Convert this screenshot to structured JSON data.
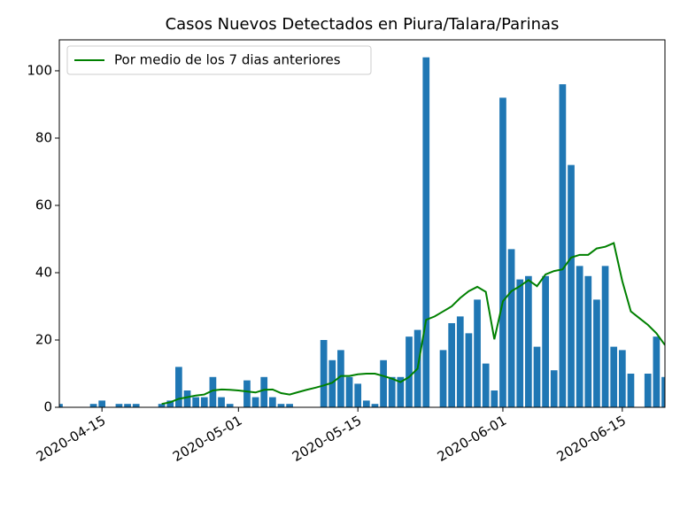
{
  "chart_data": {
    "type": "bar",
    "title": "Casos Nuevos Detectados en Piura/Talara/Parinas",
    "x": [
      "2020-04-10",
      "2020-04-11",
      "2020-04-12",
      "2020-04-13",
      "2020-04-14",
      "2020-04-15",
      "2020-04-16",
      "2020-04-17",
      "2020-04-18",
      "2020-04-19",
      "2020-04-20",
      "2020-04-21",
      "2020-04-22",
      "2020-04-23",
      "2020-04-24",
      "2020-04-25",
      "2020-04-26",
      "2020-04-27",
      "2020-04-28",
      "2020-04-29",
      "2020-04-30",
      "2020-05-01",
      "2020-05-02",
      "2020-05-03",
      "2020-05-04",
      "2020-05-05",
      "2020-05-06",
      "2020-05-07",
      "2020-05-08",
      "2020-05-09",
      "2020-05-10",
      "2020-05-11",
      "2020-05-12",
      "2020-05-13",
      "2020-05-14",
      "2020-05-15",
      "2020-05-16",
      "2020-05-17",
      "2020-05-18",
      "2020-05-19",
      "2020-05-20",
      "2020-05-21",
      "2020-05-22",
      "2020-05-23",
      "2020-05-24",
      "2020-05-25",
      "2020-05-26",
      "2020-05-27",
      "2020-05-28",
      "2020-05-29",
      "2020-05-30",
      "2020-05-31",
      "2020-06-01",
      "2020-06-02",
      "2020-06-03",
      "2020-06-04",
      "2020-06-05",
      "2020-06-06",
      "2020-06-07",
      "2020-06-08",
      "2020-06-09",
      "2020-06-10",
      "2020-06-11",
      "2020-06-12",
      "2020-06-13",
      "2020-06-14",
      "2020-06-15",
      "2020-06-16",
      "2020-06-17",
      "2020-06-18",
      "2020-06-19",
      "2020-06-20"
    ],
    "values": [
      1,
      0,
      0,
      0,
      1,
      2,
      0,
      1,
      1,
      1,
      0,
      0,
      1,
      2,
      12,
      5,
      3,
      3,
      9,
      3,
      1,
      0,
      8,
      3,
      9,
      3,
      1,
      1,
      0,
      0,
      0,
      20,
      14,
      17,
      9,
      7,
      2,
      1,
      14,
      9,
      9,
      21,
      23,
      104,
      0,
      17,
      25,
      27,
      22,
      32,
      13,
      5,
      92,
      47,
      38,
      39,
      18,
      39,
      11,
      96,
      72,
      42,
      39,
      32,
      42,
      18,
      17,
      10,
      0,
      10,
      21,
      9
    ],
    "color": "#1f77b4",
    "series": [
      {
        "name": "Por medio de los 7 dias anteriores",
        "color": "#008000",
        "values": [
          null,
          null,
          null,
          null,
          null,
          null,
          null,
          null,
          null,
          null,
          null,
          null,
          1,
          1.5,
          2.5,
          3,
          3.5,
          3.8,
          5,
          5.3,
          5.2,
          5,
          4.7,
          4.4,
          5.2,
          5.3,
          4.2,
          3.8,
          4.5,
          5.2,
          5.8,
          6.5,
          7.3,
          9.3,
          9.3,
          9.8,
          10,
          10,
          9.3,
          8.5,
          7.5,
          9,
          11.5,
          26,
          27,
          28.5,
          30,
          32.5,
          34.5,
          35.8,
          34.3,
          20.2,
          31.5,
          34.5,
          36,
          37.8,
          36,
          39.5,
          40.5,
          41,
          44.5,
          45.3,
          45.3,
          47.2,
          47.7,
          48.8,
          37.5,
          28.5,
          26.5,
          24.5,
          22,
          18.5
        ]
      }
    ],
    "xlim": [
      "2020-04-10",
      "2020-06-20"
    ],
    "xticks": [
      "2020-04-15",
      "2020-05-01",
      "2020-05-15",
      "2020-06-01",
      "2020-06-15"
    ],
    "ylim": [
      0,
      109.2
    ],
    "yticks": [
      0,
      20,
      40,
      60,
      80,
      100
    ],
    "legend": "upper left"
  }
}
